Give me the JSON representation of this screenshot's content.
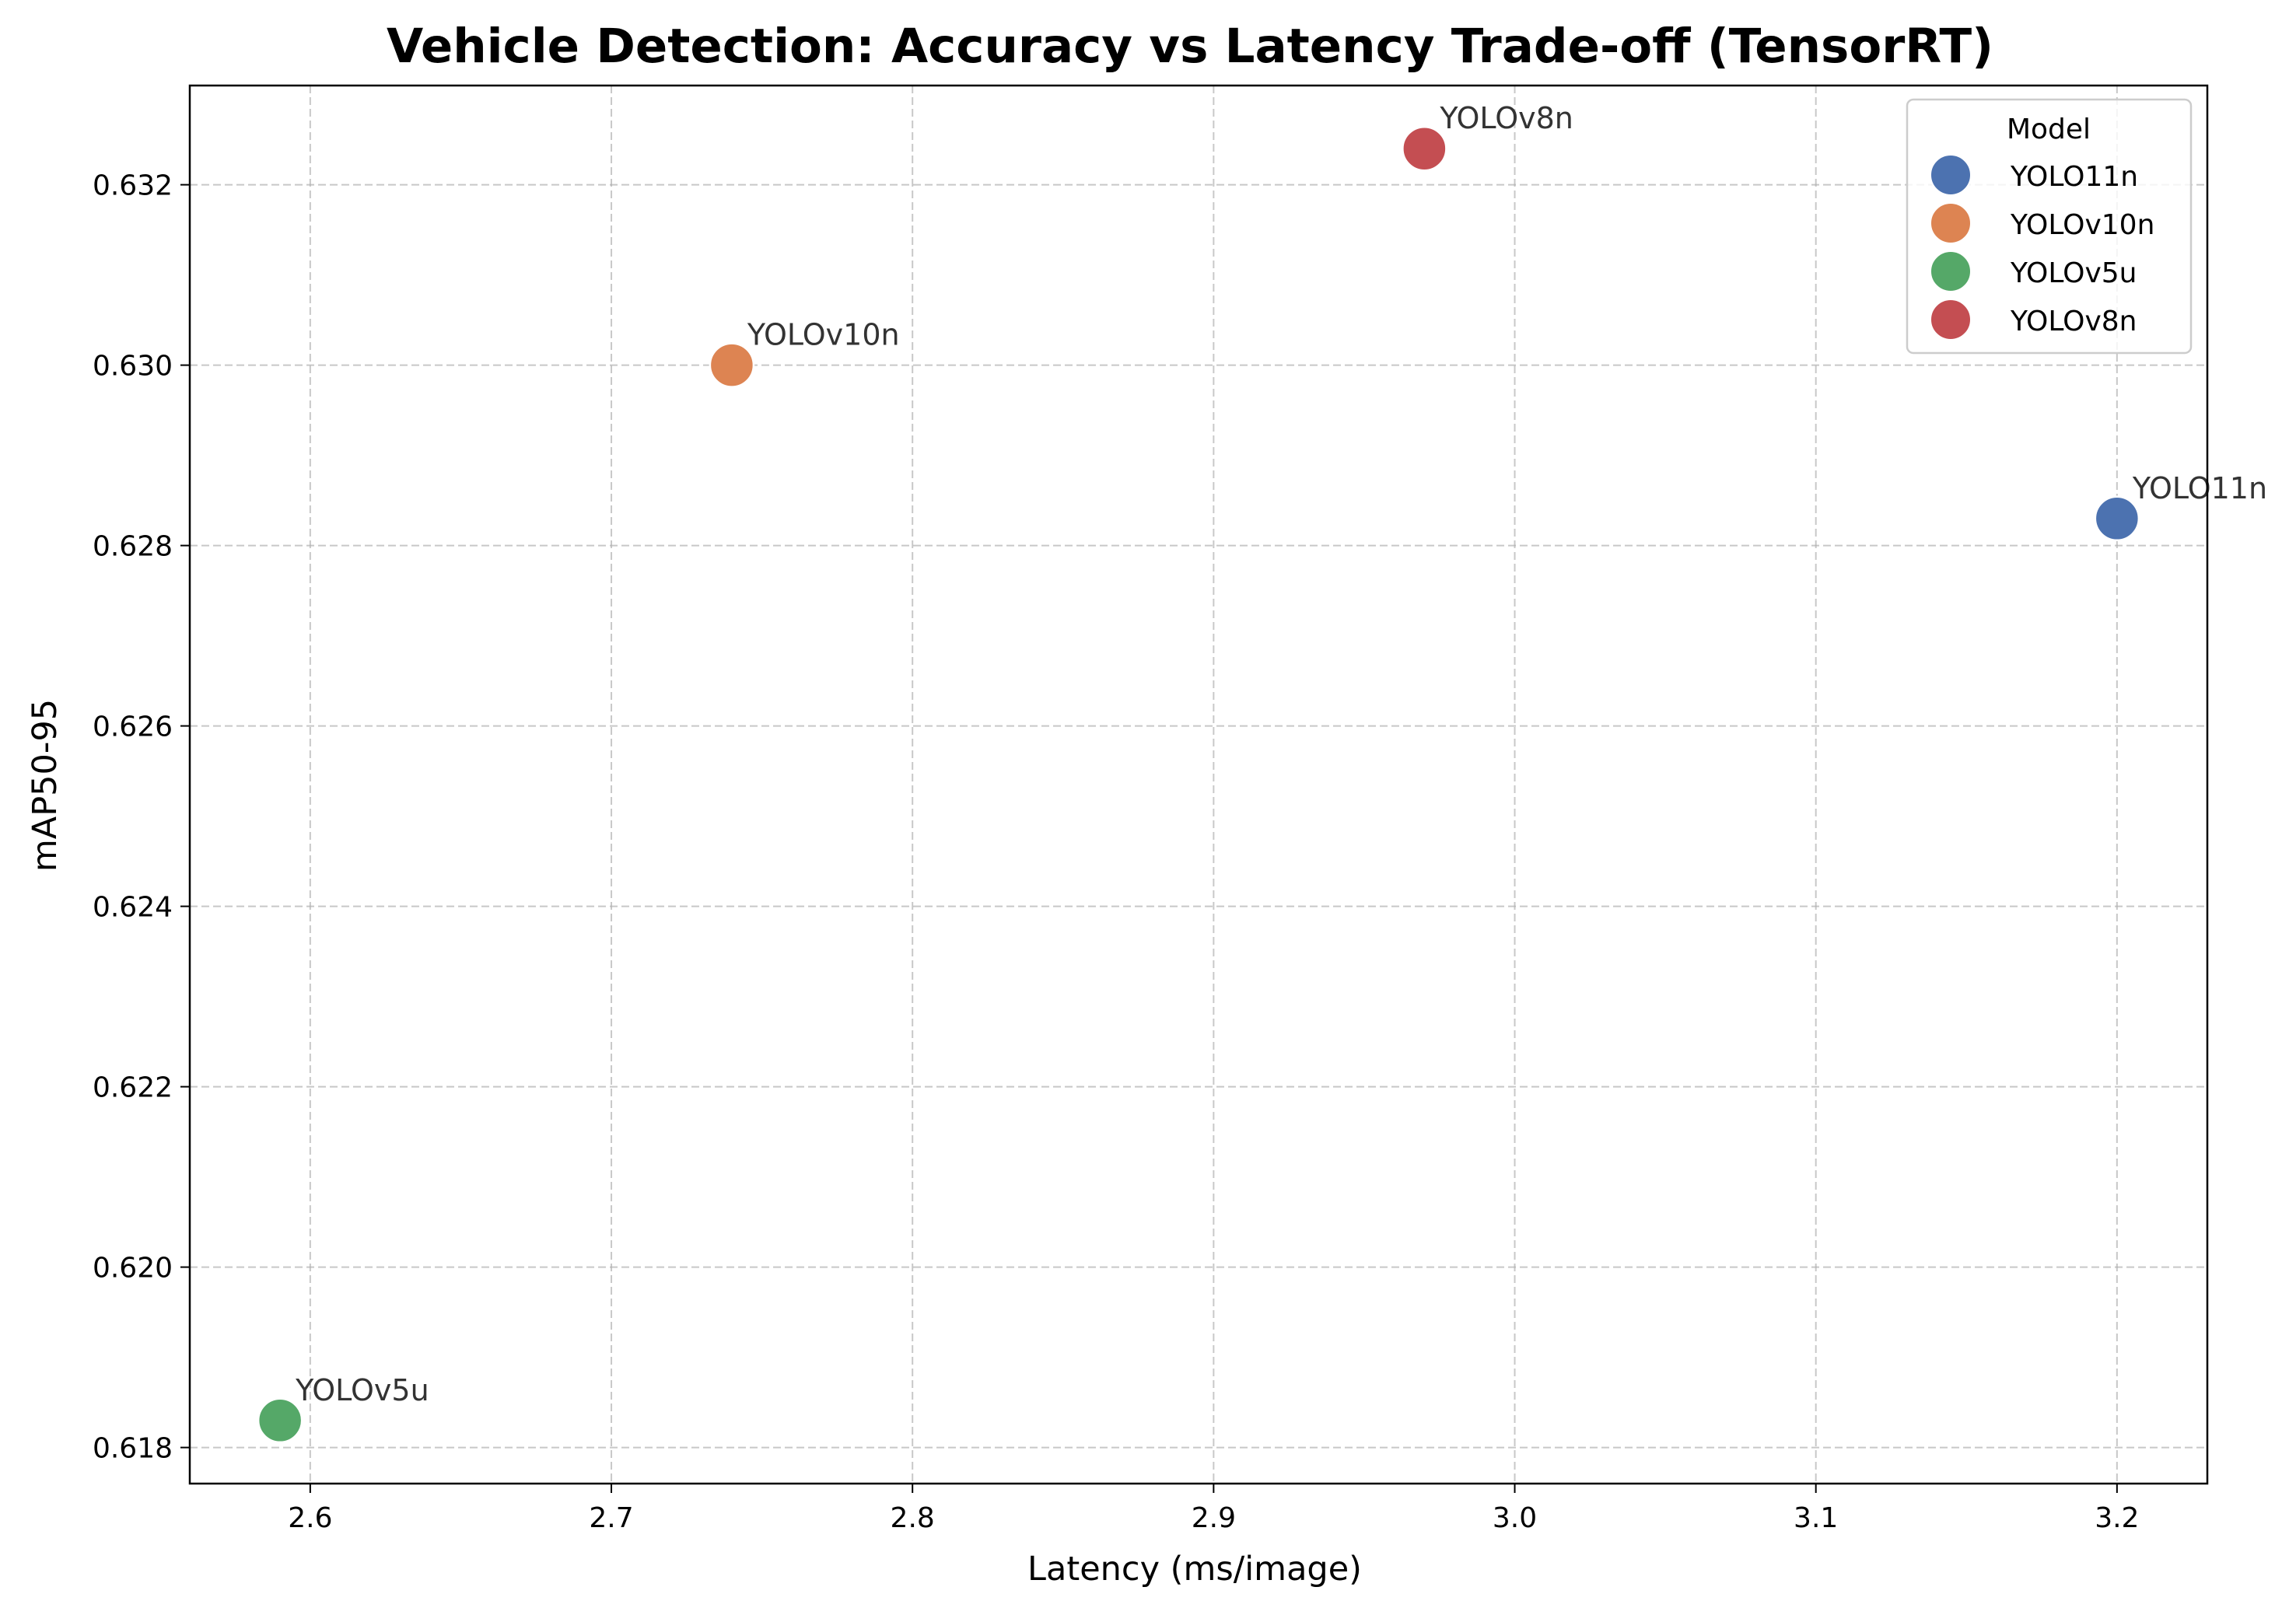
{
  "chart_data": {
    "type": "scatter",
    "title": "Vehicle Detection: Accuracy vs Latency Trade-off (TensorRT)",
    "xlabel": "Latency (ms/image)",
    "ylabel": "mAP50-95",
    "xlim": [
      2.56,
      3.23
    ],
    "ylim": [
      0.6176,
      0.6331
    ],
    "xticks": [
      "2.6",
      "2.7",
      "2.8",
      "2.9",
      "3.0",
      "3.1",
      "3.2"
    ],
    "yticks": [
      "0.618",
      "0.620",
      "0.622",
      "0.624",
      "0.626",
      "0.628",
      "0.630",
      "0.632"
    ],
    "grid": true,
    "grid_style": "dashed",
    "legend": {
      "title": "Model",
      "placement": "top-right"
    },
    "series": [
      {
        "name": "YOLO11n",
        "color": "#4c72b0",
        "x": 3.2,
        "y": 0.6283,
        "label": "YOLO11n"
      },
      {
        "name": "YOLOv10n",
        "color": "#dd8452",
        "x": 2.74,
        "y": 0.63,
        "label": "YOLOv10n"
      },
      {
        "name": "YOLOv5u",
        "color": "#55a868",
        "x": 2.59,
        "y": 0.6183,
        "label": "YOLOv5u"
      },
      {
        "name": "YOLOv8n",
        "color": "#c44e52",
        "x": 2.97,
        "y": 0.6324,
        "label": "YOLOv8n"
      }
    ]
  }
}
